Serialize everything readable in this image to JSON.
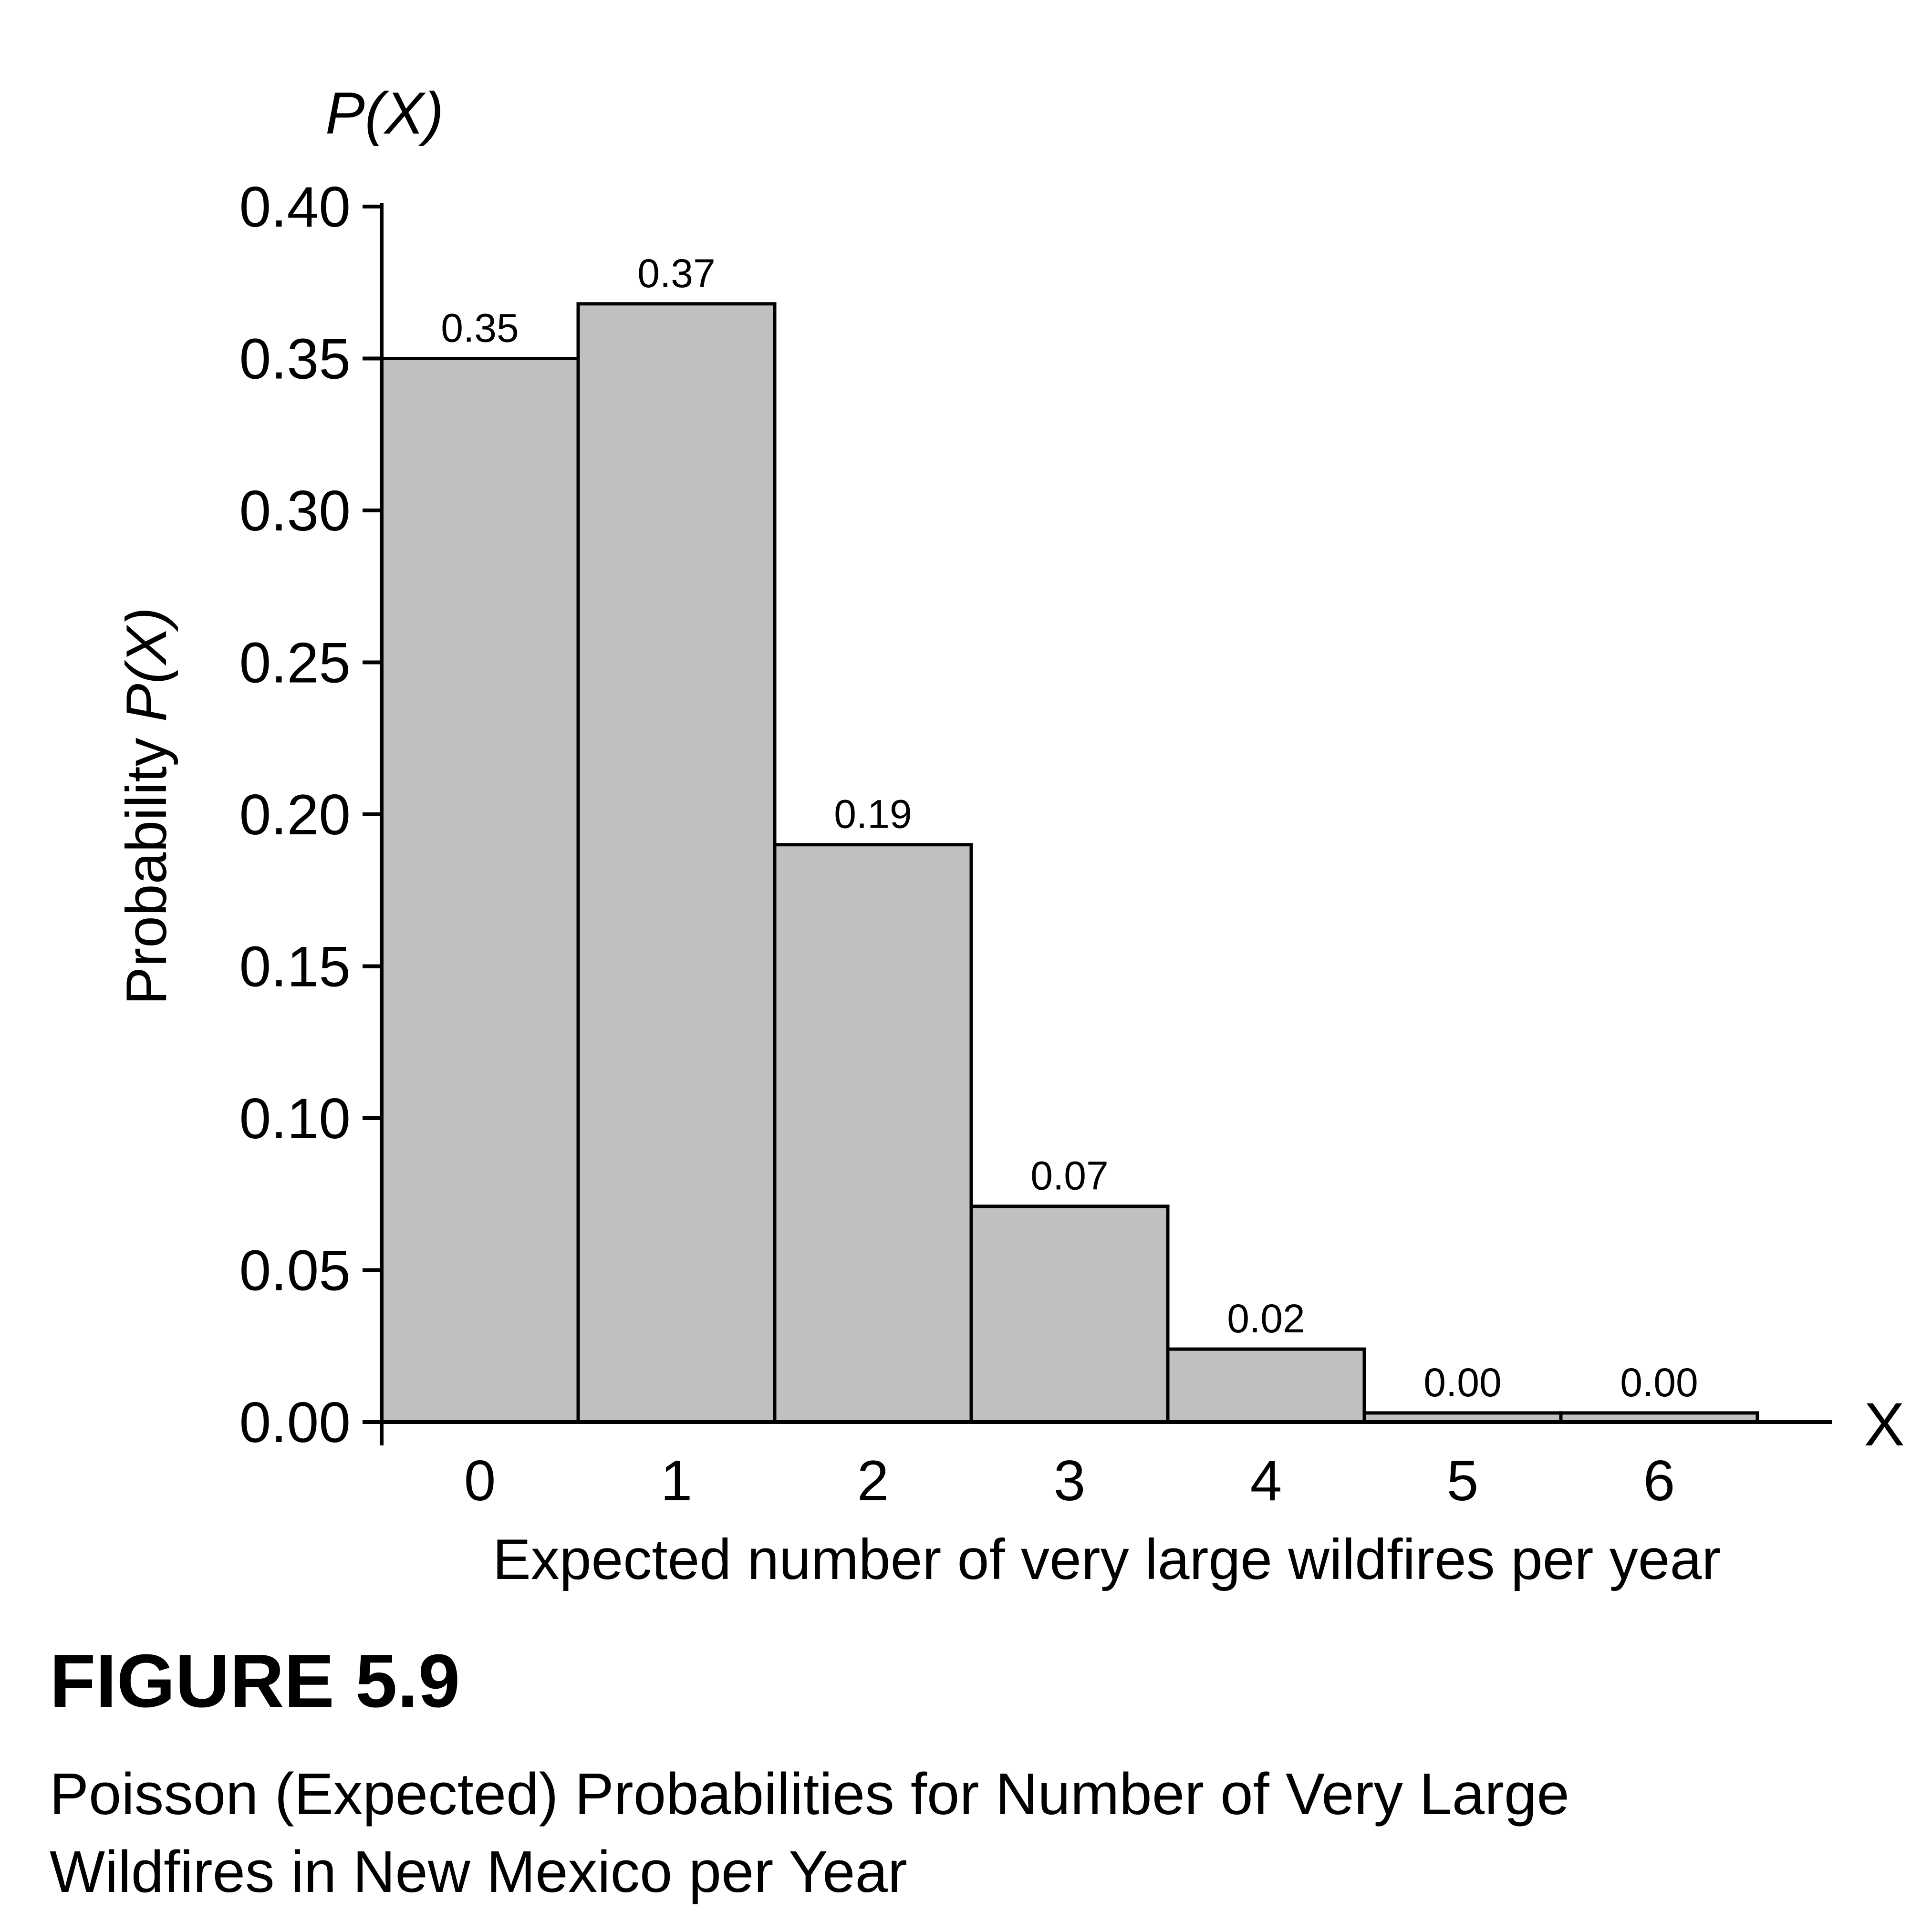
{
  "chart_data": {
    "type": "bar",
    "categories": [
      "0",
      "1",
      "2",
      "3",
      "4",
      "5",
      "6"
    ],
    "values": [
      0.35,
      0.368,
      0.19,
      0.071,
      0.024,
      0.003,
      0.003
    ],
    "data_labels": [
      "0.35",
      "0.37",
      "0.19",
      "0.07",
      "0.02",
      "0.00",
      "0.00"
    ],
    "y_ticks": [
      "0.00",
      "0.05",
      "0.10",
      "0.15",
      "0.20",
      "0.25",
      "0.30",
      "0.35",
      "0.40"
    ],
    "ylim": [
      0,
      0.4
    ],
    "xlabel": "Expected number of very large wildfires per year",
    "ylabel_prefix": "Probability ",
    "ylabel_symbol": "P(X)",
    "y_axis_top_label": "P(X)",
    "x_axis_end_label": "X",
    "bar_color": "#c0c0c0",
    "bar_edge_color": "#000000",
    "grid": false
  },
  "figure": {
    "number": "FIGURE 5.9",
    "caption_line1": "Poisson (Expected) Probabilities for Number of Very Large",
    "caption_line2": "Wildfires in New Mexico per Year"
  }
}
